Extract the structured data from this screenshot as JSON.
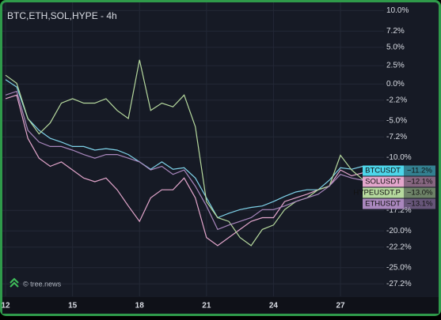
{
  "chart_data": {
    "type": "line",
    "title": "BTC,ETH,SOL,HYPE - 4h",
    "watermark": "© tree.news",
    "x": [
      12,
      12.5,
      13,
      13.5,
      14,
      14.5,
      15,
      15.5,
      16,
      16.5,
      17,
      17.5,
      18,
      18.5,
      19,
      19.5,
      20,
      20.5,
      21,
      21.5,
      22,
      22.5,
      23,
      23.5,
      24,
      24.5,
      25,
      25.5,
      26,
      26.5,
      27,
      27.5,
      28
    ],
    "xlim": [
      11.75,
      28.95
    ],
    "xticks": [
      12,
      15,
      18,
      21,
      24,
      27
    ],
    "ylim": [
      -28.9,
      10.9
    ],
    "yticks": [
      {
        "value": 10.0,
        "label": "10.0%"
      },
      {
        "value": 7.2,
        "label": "7.2%"
      },
      {
        "value": 5.0,
        "label": "5.0%"
      },
      {
        "value": 2.5,
        "label": "2.5%"
      },
      {
        "value": 0.0,
        "label": "0.0%"
      },
      {
        "value": -2.2,
        "label": "-2.2%"
      },
      {
        "value": -5.0,
        "label": "-5.0%"
      },
      {
        "value": -7.2,
        "label": "-7.2%"
      },
      {
        "value": -10.0,
        "label": "-10.0%"
      },
      {
        "value": -17.2,
        "label": "-17.2%"
      },
      {
        "value": -20.0,
        "label": "-20.0%"
      },
      {
        "value": -22.2,
        "label": "-22.2%"
      },
      {
        "value": -25.0,
        "label": "-25.0%"
      },
      {
        "value": -27.2,
        "label": "-27.2%"
      }
    ],
    "grid": true,
    "series": [
      {
        "name": "BTCUSDT",
        "color": "#7fd3ea",
        "label_color": "#4dd6ea",
        "end_label": {
          "value": -11.2,
          "label": "−11.2%"
        },
        "values": [
          0.6,
          -0.4,
          -4.7,
          -6.3,
          -7.4,
          -7.9,
          -8.5,
          -8.5,
          -9.0,
          -8.8,
          -9.0,
          -9.6,
          -10.6,
          -11.6,
          -10.6,
          -11.6,
          -11.4,
          -12.8,
          -15.5,
          -18.2,
          -17.6,
          -17.1,
          -16.8,
          -16.6,
          -16.0,
          -15.3,
          -14.7,
          -14.4,
          -14.4,
          -13.1,
          -11.4,
          -11.6,
          -11.2
        ]
      },
      {
        "name": "SOLUSDT",
        "color": "#e3a6cc",
        "label_color": "#e3a6cc",
        "end_label": {
          "value": -12.1,
          "label": "−12.1%"
        },
        "values": [
          -2.0,
          -1.5,
          -7.4,
          -10.1,
          -11.2,
          -10.6,
          -11.7,
          -12.8,
          -13.3,
          -12.8,
          -14.4,
          -16.6,
          -18.7,
          -15.5,
          -14.4,
          -14.4,
          -12.8,
          -15.5,
          -20.9,
          -22.0,
          -20.9,
          -19.8,
          -18.7,
          -18.2,
          -18.2,
          -16.0,
          -15.5,
          -15.0,
          -14.4,
          -13.9,
          -11.7,
          -12.5,
          -12.1
        ]
      },
      {
        "name": "HYPEUSDT.P",
        "color": "#b6d99e",
        "label_color": "#b6d99e",
        "end_label": {
          "value": -13.0,
          "label": "−13.0%"
        },
        "values": [
          1.2,
          0.1,
          -4.7,
          -6.8,
          -5.3,
          -2.6,
          -2.0,
          -2.6,
          -2.6,
          -2.0,
          -3.6,
          -4.7,
          3.3,
          -3.6,
          -2.6,
          -3.1,
          -1.5,
          -5.8,
          -16.0,
          -18.2,
          -18.7,
          -20.9,
          -22.0,
          -19.8,
          -19.2,
          -17.1,
          -16.0,
          -15.5,
          -14.4,
          -13.9,
          -9.7,
          -11.7,
          -13.0
        ]
      },
      {
        "name": "ETHUSDT",
        "color": "#a987bd",
        "label_color": "#a987bd",
        "end_label": {
          "value": -13.1,
          "label": "−13.1%"
        },
        "values": [
          -1.5,
          -1.0,
          -6.3,
          -7.9,
          -8.5,
          -8.5,
          -9.0,
          -9.6,
          -10.1,
          -9.6,
          -9.6,
          -10.1,
          -10.6,
          -11.7,
          -11.2,
          -12.3,
          -11.7,
          -13.9,
          -16.6,
          -19.8,
          -19.2,
          -18.7,
          -18.2,
          -17.1,
          -17.1,
          -16.6,
          -16.0,
          -15.5,
          -15.0,
          -13.9,
          -12.3,
          -12.8,
          -13.1
        ]
      }
    ]
  }
}
